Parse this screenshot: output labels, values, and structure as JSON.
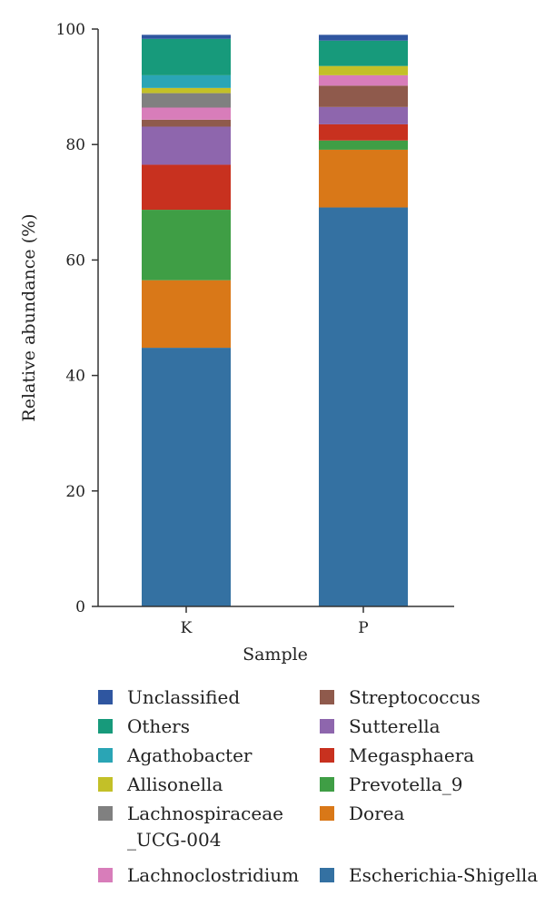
{
  "chart_data": {
    "type": "bar",
    "stacked": true,
    "xlabel": "Sample",
    "ylabel": "Relative abundance (%)",
    "ylim": [
      0,
      100
    ],
    "yticks": [
      0,
      20,
      40,
      60,
      80,
      100
    ],
    "categories": [
      "K",
      "P"
    ],
    "grid": false,
    "legend_position": "bottom",
    "series": [
      {
        "name": "Escherichia-Shigella",
        "color": "#3471a2",
        "values": [
          44.8,
          69.1
        ]
      },
      {
        "name": "Dorea",
        "color": "#d97818",
        "values": [
          11.7,
          10.0
        ]
      },
      {
        "name": "Prevotella_9",
        "color": "#3f9e45",
        "values": [
          12.2,
          1.6
        ]
      },
      {
        "name": "Megasphaera",
        "color": "#c8311f",
        "values": [
          7.8,
          2.8
        ]
      },
      {
        "name": "Sutterella",
        "color": "#8e66ad",
        "values": [
          6.6,
          3.0
        ]
      },
      {
        "name": "Streptococcus",
        "color": "#8f5a4c",
        "values": [
          1.2,
          3.7
        ]
      },
      {
        "name": "Lachnoclostridium",
        "color": "#d87dba",
        "values": [
          2.1,
          1.8
        ]
      },
      {
        "name": "Lachnospiraceae\n_UCG-004",
        "color": "#808080",
        "values": [
          2.5,
          0.0
        ]
      },
      {
        "name": "Allisonella",
        "color": "#c3c028",
        "values": [
          0.9,
          1.6
        ]
      },
      {
        "name": "Agathobacter",
        "color": "#2aa5b5",
        "values": [
          2.2,
          0.0
        ]
      },
      {
        "name": "Others",
        "color": "#179a7b",
        "values": [
          6.3,
          4.4
        ]
      },
      {
        "name": "Unclassified",
        "color": "#2f56a0",
        "values": [
          0.7,
          1.0
        ]
      }
    ],
    "legend_order": [
      "Unclassified",
      "Others",
      "Agathobacter",
      "Allisonella",
      "Lachnospiraceae\n_UCG-004",
      "Lachnoclostridium",
      "Streptococcus",
      "Sutterella",
      "Megasphaera",
      "Prevotella_9",
      "Dorea",
      "Escherichia-Shigella"
    ]
  }
}
